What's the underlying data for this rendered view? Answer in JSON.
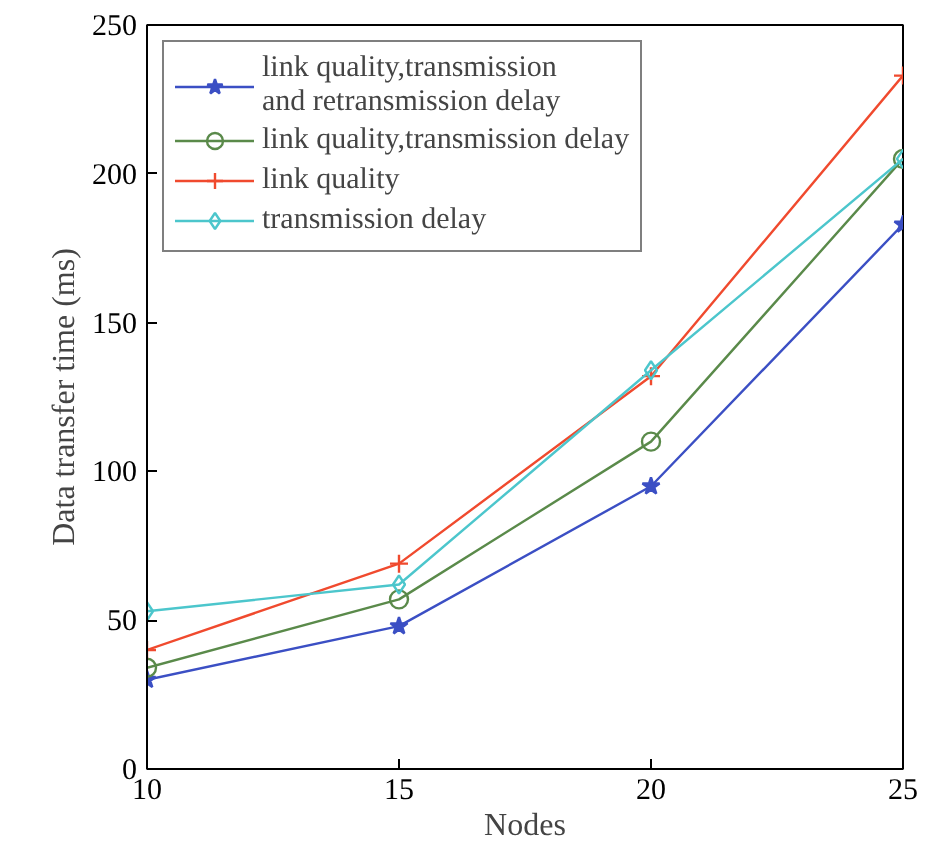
{
  "chart_data": {
    "type": "line",
    "xlabel": "Nodes",
    "ylabel": "Data transfer time (ms)",
    "x": [
      10,
      15,
      20,
      25
    ],
    "xlim": [
      10,
      25
    ],
    "xticks": [
      10,
      15,
      20,
      25
    ],
    "ylim": [
      0,
      250
    ],
    "yticks": [
      0,
      50,
      100,
      150,
      200,
      250
    ],
    "grid": false,
    "legend": "top left",
    "line_style": "solid",
    "series": [
      {
        "name": "link quality,transmission\nand retransmission delay",
        "color": "#3b4fc4",
        "marker": "star",
        "values": [
          30,
          48,
          95,
          183
        ]
      },
      {
        "name": "link quality,transmission delay",
        "color": "#5a8a4a",
        "marker": "circle",
        "values": [
          34,
          57,
          110,
          205
        ]
      },
      {
        "name": "link quality",
        "color": "#f04a2e",
        "marker": "cross",
        "values": [
          40,
          69,
          132,
          233
        ]
      },
      {
        "name": "transmission delay",
        "color": "#4cc6cc",
        "marker": "diamond",
        "values": [
          53,
          62,
          134,
          205
        ]
      }
    ]
  }
}
